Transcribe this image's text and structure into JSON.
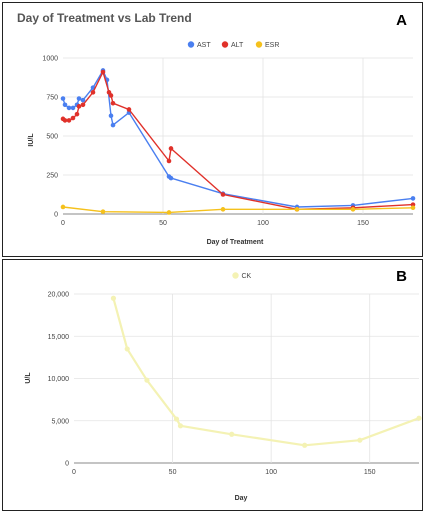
{
  "chart_data": [
    {
      "type": "line",
      "panel_letter": "A",
      "title": "Day of Treatment vs Lab Trend",
      "xlabel": "Day of Treatment",
      "ylabel": "IU/L",
      "xlim": [
        0,
        175
      ],
      "ylim": [
        0,
        1000
      ],
      "xticks": [
        "0",
        "50",
        "100",
        "150"
      ],
      "yticks": [
        "0",
        "250",
        "500",
        "750",
        "1000"
      ],
      "grid": true,
      "legend_placement": "top-center",
      "series": [
        {
          "name": "AST",
          "color": "#4a7ff0",
          "x": [
            0,
            1,
            3,
            5,
            7,
            8,
            10,
            15,
            20,
            22,
            24,
            25,
            33,
            53,
            54,
            80,
            117,
            145,
            175
          ],
          "y": [
            740,
            700,
            680,
            680,
            700,
            740,
            730,
            810,
            920,
            860,
            630,
            570,
            650,
            240,
            230,
            130,
            45,
            55,
            100
          ]
        },
        {
          "name": "ALT",
          "color": "#e0312a",
          "x": [
            0,
            1,
            3,
            5,
            7,
            8,
            10,
            15,
            20,
            23,
            24,
            25,
            33,
            53,
            54,
            80,
            117,
            145,
            175
          ],
          "y": [
            610,
            600,
            600,
            615,
            640,
            690,
            700,
            780,
            910,
            780,
            760,
            710,
            670,
            340,
            420,
            125,
            30,
            40,
            60
          ]
        },
        {
          "name": "ESR",
          "color": "#f5c11c",
          "x": [
            0,
            20,
            53,
            80,
            117,
            145,
            175
          ],
          "y": [
            45,
            15,
            10,
            30,
            30,
            30,
            40
          ]
        }
      ]
    },
    {
      "type": "line",
      "panel_letter": "B",
      "title": "",
      "xlabel": "Day",
      "ylabel": "U/L",
      "xlim": [
        0,
        175
      ],
      "ylim": [
        0,
        20000
      ],
      "xticks": [
        "0",
        "50",
        "100",
        "150"
      ],
      "yticks": [
        "0",
        "5,000",
        "10,000",
        "15,000",
        "20,000"
      ],
      "grid": true,
      "legend_placement": "top-center",
      "series": [
        {
          "name": "CK",
          "color": "#f4f2b4",
          "x": [
            20,
            27,
            37,
            52,
            54,
            80,
            117,
            145,
            175
          ],
          "y": [
            19500,
            13500,
            9800,
            5200,
            4400,
            3400,
            2100,
            2700,
            5300
          ]
        }
      ]
    }
  ]
}
